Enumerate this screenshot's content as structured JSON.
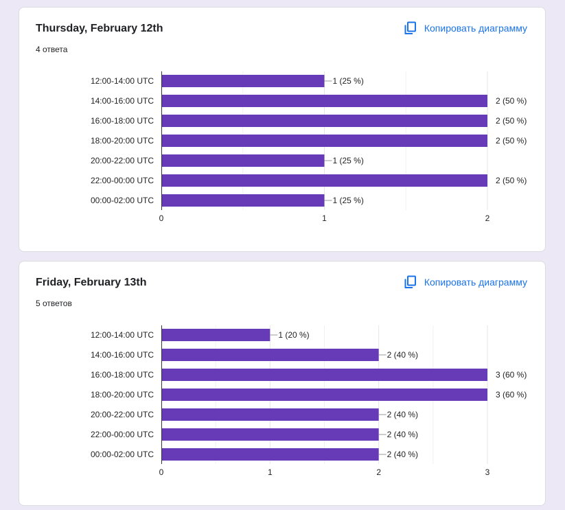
{
  "copy_label": "Копировать диаграмму",
  "colors": {
    "bar": "#673ab7",
    "accent": "#1a73e8",
    "background": "#ede8f6"
  },
  "icons": {
    "copy": "copy-icon"
  },
  "cards": [
    {
      "title": "Thursday, February 12th",
      "subtitle": "4 ответа",
      "chart_data": {
        "type": "bar",
        "orientation": "horizontal",
        "categories": [
          "12:00-14:00 UTC",
          "14:00-16:00 UTC",
          "16:00-18:00 UTC",
          "18:00-20:00 UTC",
          "20:00-22:00 UTC",
          "22:00-00:00 UTC",
          "00:00-02:00 UTC"
        ],
        "values": [
          1,
          2,
          2,
          2,
          1,
          2,
          1
        ],
        "data_labels": [
          "1 (25 %)",
          "2 (50 %)",
          "2 (50 %)",
          "2 (50 %)",
          "1 (25 %)",
          "2 (50 %)",
          "1 (25 %)"
        ],
        "xlim": [
          0,
          2
        ],
        "xticks": [
          "0",
          "1",
          "2"
        ],
        "grid": true
      }
    },
    {
      "title": "Friday, February 13th",
      "subtitle": "5 ответов",
      "chart_data": {
        "type": "bar",
        "orientation": "horizontal",
        "categories": [
          "12:00-14:00 UTC",
          "14:00-16:00 UTC",
          "16:00-18:00 UTC",
          "18:00-20:00 UTC",
          "20:00-22:00 UTC",
          "22:00-00:00 UTC",
          "00:00-02:00 UTC"
        ],
        "values": [
          1,
          2,
          3,
          3,
          2,
          2,
          2
        ],
        "data_labels": [
          "1 (20 %)",
          "2 (40 %)",
          "3 (60 %)",
          "3 (60 %)",
          "2 (40 %)",
          "2 (40 %)",
          "2 (40 %)"
        ],
        "xlim": [
          0,
          3
        ],
        "xticks": [
          "0",
          "1",
          "2",
          "3"
        ],
        "grid": true
      }
    }
  ]
}
